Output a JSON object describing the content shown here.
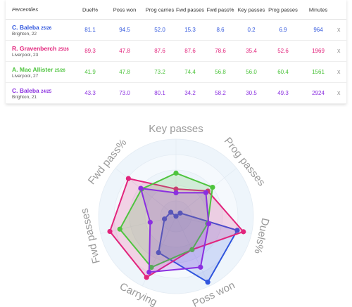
{
  "table": {
    "header": [
      "Percentiles",
      "Duel%",
      "Poss won",
      "Prog carries",
      "Fwd passes",
      "Fwd pass%",
      "Key passes",
      "Prog passes",
      "Minutes"
    ],
    "rows": [
      {
        "name": "C. Baleba",
        "season": "25/26",
        "club": "Brighton, 22",
        "color": "#2f55dd",
        "values": [
          "81.1",
          "94.5",
          "52.0",
          "15.3",
          "8.6",
          "0.2",
          "6.9",
          "964"
        ],
        "remove": "x"
      },
      {
        "name": "R. Gravenberch",
        "season": "25/26",
        "club": "Liverpool, 23",
        "color": "#e2247c",
        "values": [
          "89.3",
          "47.8",
          "87.6",
          "87.6",
          "78.6",
          "35.4",
          "52.6",
          "1969"
        ],
        "remove": "x"
      },
      {
        "name": "A. Mac Allister",
        "season": "25/26",
        "club": "Liverpool, 27",
        "color": "#4ec43e",
        "values": [
          "41.9",
          "47.8",
          "73.2",
          "74.4",
          "56.8",
          "56.0",
          "60.4",
          "1561"
        ],
        "remove": "x"
      },
      {
        "name": "C. Baleba",
        "season": "24/25",
        "club": "Brighton, 21",
        "color": "#8b2fe0",
        "values": [
          "43.3",
          "73.0",
          "80.1",
          "34.2",
          "58.2",
          "30.5",
          "49.3",
          "2924"
        ],
        "remove": "x"
      }
    ]
  },
  "chart_data": {
    "type": "radar",
    "axes": [
      "Key passes",
      "Prog passes",
      "Duels%",
      "Poss won",
      "Carrying",
      "Fwd passes",
      "Fwd pass%"
    ],
    "rlim": [
      0,
      100
    ],
    "series": [
      {
        "color": "#2f55dd",
        "values": [
          0.2,
          6.9,
          81.1,
          94.5,
          52.0,
          15.3,
          8.6
        ]
      },
      {
        "color": "#e2247c",
        "values": [
          35.4,
          52.6,
          89.3,
          47.8,
          87.6,
          87.6,
          78.6
        ]
      },
      {
        "color": "#4ec43e",
        "values": [
          56.0,
          60.4,
          41.9,
          47.8,
          73.2,
          74.4,
          56.8
        ]
      },
      {
        "color": "#8b2fe0",
        "values": [
          30.5,
          49.3,
          43.3,
          73.0,
          80.1,
          34.2,
          58.2
        ]
      }
    ]
  }
}
